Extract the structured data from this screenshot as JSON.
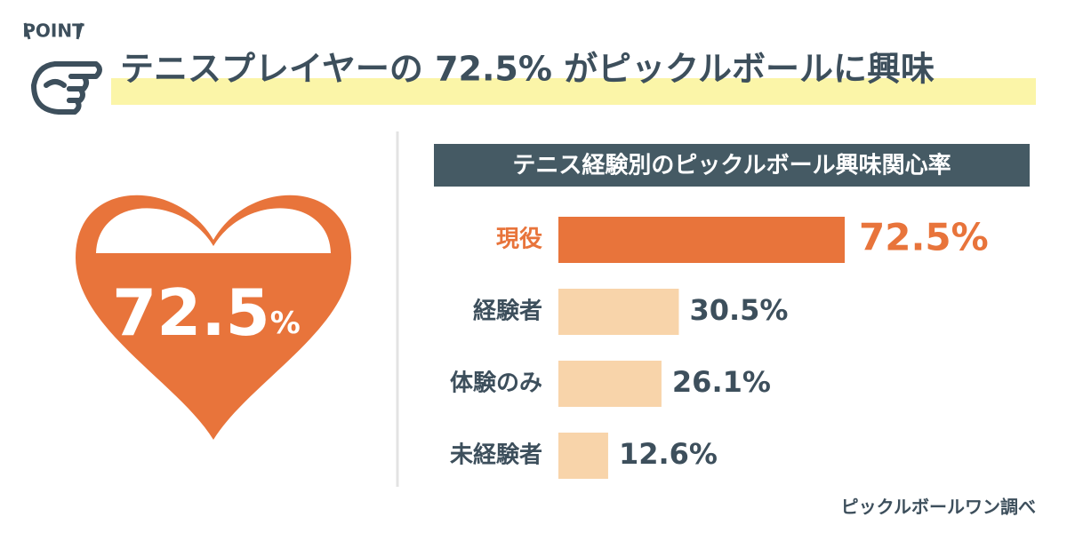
{
  "point_label": "POINT",
  "headline": "テニスプレイヤーの 72.5% がピックルボールに興味",
  "heart": {
    "number": "72.5",
    "unit": "%"
  },
  "source": "ピックルボールワン調べ",
  "chart_data": {
    "type": "bar",
    "orientation": "horizontal",
    "title": "テニス経験別のピックルボール興味関心率",
    "categories": [
      "現役",
      "経験者",
      "体験のみ",
      "未経験者"
    ],
    "values": [
      72.5,
      30.5,
      26.1,
      12.6
    ],
    "value_labels": [
      "72.5%",
      "30.5%",
      "26.1%",
      "12.6%"
    ],
    "colors": [
      "#e8743b",
      "#f8d4aa",
      "#f8d4aa",
      "#f8d4aa"
    ],
    "label_colors": [
      "#e8743b",
      "#3d4f5c",
      "#3d4f5c",
      "#3d4f5c"
    ]
  }
}
